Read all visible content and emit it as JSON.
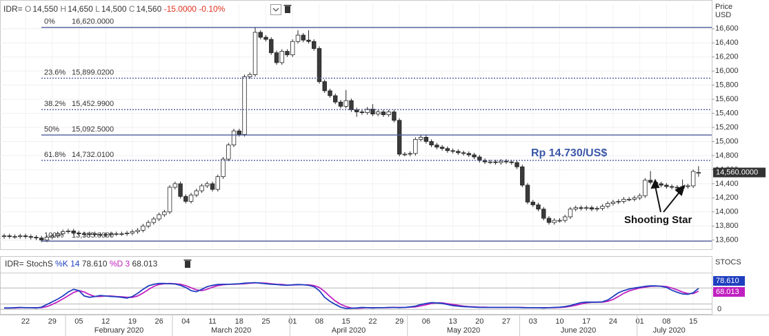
{
  "chart_data": [
    {
      "type": "candlestick",
      "header": {
        "symbol": "IDR=",
        "fields": [
          {
            "key": "O",
            "value": "14,550"
          },
          {
            "key": "H",
            "value": "14,650"
          },
          {
            "key": "L",
            "value": "14,500"
          },
          {
            "key": "C",
            "value": "14,560"
          }
        ],
        "change": "-15.0000",
        "change_pct": "-0.10%"
      },
      "y_axis_title": [
        "Price",
        "USD"
      ],
      "categories": [
        null,
        null,
        null,
        null,
        "22",
        null,
        null,
        null,
        null,
        "29",
        null,
        null,
        null,
        null,
        "05",
        null,
        null,
        null,
        null,
        "12",
        null,
        null,
        null,
        null,
        "19",
        null,
        null,
        null,
        null,
        "26",
        null,
        null,
        null,
        null,
        "04",
        null,
        null,
        null,
        null,
        "11",
        null,
        null,
        null,
        null,
        "18",
        null,
        null,
        null,
        null,
        "25",
        null,
        null,
        null,
        null,
        "01",
        null,
        null,
        null,
        null,
        "08",
        null,
        null,
        null,
        null,
        "15",
        null,
        null,
        null,
        null,
        "22",
        null,
        null,
        null,
        null,
        "29",
        null,
        null,
        null,
        null,
        "06",
        null,
        null,
        null,
        null,
        "13",
        null,
        null,
        null,
        null,
        "20",
        null,
        null,
        null,
        null,
        "27",
        null,
        null,
        null,
        null,
        "03",
        null,
        null,
        null,
        null,
        "10",
        null,
        null,
        null,
        null,
        "17",
        null,
        null,
        null,
        null,
        "24",
        null,
        null,
        null,
        null,
        "01",
        null,
        null,
        null,
        null,
        "08",
        null,
        null,
        null,
        null,
        "15",
        null
      ],
      "month_labels": [
        "February 2020",
        "March 2020",
        "April 2020",
        "May 2020",
        "June 2020",
        "July 2020"
      ],
      "open": [
        13650,
        13660,
        13650,
        13650,
        13660,
        13650,
        13640,
        13630,
        13600,
        13640,
        13660,
        13690,
        13720,
        13730,
        13700,
        13690,
        13680,
        13690,
        13680,
        13670,
        13680,
        13690,
        13690,
        13690,
        13700,
        13720,
        13740,
        13800,
        13850,
        13900,
        13960,
        14000,
        14350,
        14400,
        14220,
        14150,
        14240,
        14300,
        14370,
        14400,
        14320,
        14500,
        14750,
        14950,
        15150,
        15100,
        15920,
        15950,
        16550,
        16480,
        16450,
        16260,
        16120,
        16280,
        16230,
        16420,
        16510,
        16440,
        16420,
        16320,
        15850,
        15720,
        15650,
        15560,
        15500,
        15580,
        15450,
        15420,
        15410,
        15460,
        15390,
        15420,
        15380,
        15420,
        15300,
        14820,
        14820,
        14830,
        15030,
        15060,
        15000,
        14950,
        14920,
        14900,
        14870,
        14860,
        14840,
        14830,
        14810,
        14780,
        14730,
        14710,
        14710,
        14700,
        14720,
        14710,
        14700,
        14640,
        14380,
        14140,
        14100,
        14040,
        13910,
        13850,
        13880,
        13880,
        13930,
        14040,
        14060,
        14050,
        14060,
        14040,
        14050,
        14080,
        14120,
        14140,
        14150,
        14180,
        14180,
        14200,
        14230,
        14450,
        14420,
        14400,
        14380,
        14360,
        14350,
        14340,
        14360,
        14370,
        14550
      ],
      "high": [
        13690,
        13690,
        13680,
        13690,
        13690,
        13680,
        13670,
        13660,
        13670,
        13690,
        13720,
        13750,
        13760,
        13760,
        13730,
        13720,
        13720,
        13720,
        13710,
        13710,
        13720,
        13720,
        13720,
        13730,
        13750,
        13770,
        13830,
        13880,
        13930,
        13990,
        14030,
        14380,
        14430,
        14430,
        14250,
        14270,
        14330,
        14400,
        14430,
        14430,
        14530,
        14780,
        14980,
        15180,
        15180,
        15950,
        15980,
        16620,
        16580,
        16510,
        16480,
        16290,
        16310,
        16310,
        16450,
        16580,
        16540,
        16580,
        16450,
        16350,
        15880,
        15750,
        15680,
        15590,
        15730,
        15610,
        15480,
        15450,
        15490,
        15530,
        15450,
        15450,
        15450,
        15450,
        15330,
        14850,
        14860,
        15060,
        15090,
        15090,
        15030,
        14980,
        14950,
        14930,
        14900,
        14890,
        14870,
        14860,
        14840,
        14810,
        14760,
        14740,
        14740,
        14750,
        14750,
        14740,
        14730,
        14670,
        14410,
        14170,
        14130,
        14070,
        13940,
        13910,
        13910,
        13960,
        14070,
        14090,
        14090,
        14090,
        14090,
        14080,
        14110,
        14150,
        14170,
        14180,
        14210,
        14210,
        14230,
        14260,
        14480,
        14580,
        14450,
        14430,
        14410,
        14390,
        14380,
        14460,
        14400,
        14600,
        14650
      ],
      "low": [
        13620,
        13620,
        13620,
        13620,
        13620,
        13610,
        13600,
        13570,
        13570,
        13610,
        13630,
        13660,
        13690,
        13670,
        13660,
        13650,
        13650,
        13650,
        13640,
        13640,
        13650,
        13660,
        13660,
        13660,
        13670,
        13690,
        13710,
        13770,
        13820,
        13870,
        13930,
        13970,
        14320,
        14190,
        14120,
        14120,
        14210,
        14270,
        14340,
        14290,
        14290,
        14470,
        14720,
        14920,
        15070,
        15070,
        15890,
        15920,
        16450,
        16420,
        16230,
        16090,
        16090,
        16200,
        16200,
        16390,
        16410,
        16390,
        16290,
        15820,
        15690,
        15620,
        15530,
        15470,
        15470,
        15420,
        15350,
        15380,
        15380,
        15360,
        15360,
        15350,
        15350,
        15270,
        14790,
        14790,
        14790,
        14800,
        15000,
        14970,
        14920,
        14890,
        14870,
        14840,
        14830,
        14810,
        14800,
        14780,
        14750,
        14700,
        14680,
        14680,
        14670,
        14670,
        14680,
        14670,
        14610,
        14350,
        14110,
        14070,
        14010,
        13880,
        13820,
        13820,
        13850,
        13850,
        13900,
        14010,
        14020,
        14020,
        14010,
        14010,
        14020,
        14050,
        14090,
        14110,
        14120,
        14150,
        14150,
        14170,
        14200,
        14390,
        14370,
        14350,
        14330,
        14320,
        14310,
        14330,
        14330,
        14340,
        14500
      ],
      "close": [
        13660,
        13650,
        13650,
        13660,
        13650,
        13640,
        13630,
        13600,
        13640,
        13660,
        13690,
        13720,
        13730,
        13700,
        13690,
        13680,
        13690,
        13680,
        13670,
        13680,
        13690,
        13690,
        13690,
        13700,
        13720,
        13740,
        13800,
        13850,
        13900,
        13960,
        14000,
        14350,
        14400,
        14220,
        14150,
        14240,
        14300,
        14370,
        14400,
        14320,
        14500,
        14750,
        14950,
        15150,
        15100,
        15920,
        15950,
        16550,
        16480,
        16450,
        16260,
        16120,
        16280,
        16230,
        16420,
        16510,
        16440,
        16420,
        16320,
        15850,
        15720,
        15650,
        15560,
        15500,
        15580,
        15450,
        15420,
        15410,
        15460,
        15390,
        15420,
        15380,
        15420,
        15300,
        14820,
        14820,
        14830,
        15030,
        15060,
        15000,
        14950,
        14920,
        14900,
        14870,
        14860,
        14840,
        14830,
        14810,
        14780,
        14730,
        14710,
        14710,
        14700,
        14720,
        14710,
        14700,
        14640,
        14380,
        14140,
        14100,
        14040,
        13910,
        13850,
        13880,
        13880,
        13930,
        14040,
        14060,
        14050,
        14060,
        14040,
        14050,
        14080,
        14120,
        14140,
        14150,
        14180,
        14180,
        14200,
        14230,
        14450,
        14420,
        14400,
        14380,
        14360,
        14350,
        14340,
        14360,
        14370,
        14575,
        14560
      ],
      "up_color": "#ffffff",
      "down_color": "#3a3a3a",
      "ylim": [
        13470,
        16960
      ],
      "yticks": [
        {
          "value": 13600,
          "label": "13,600"
        },
        {
          "value": 13800,
          "label": "13,800"
        },
        {
          "value": 14000,
          "label": "14,000"
        },
        {
          "value": 14200,
          "label": "14,200"
        },
        {
          "value": 14400,
          "label": "14,400"
        },
        {
          "value": 14600,
          "label": "14,600"
        },
        {
          "value": 14800,
          "label": "14,800"
        },
        {
          "value": 15000,
          "label": "15,000"
        },
        {
          "value": 15200,
          "label": "15,200"
        },
        {
          "value": 15400,
          "label": "15,400"
        },
        {
          "value": 15600,
          "label": "15,600"
        },
        {
          "value": 15800,
          "label": "15,800"
        },
        {
          "value": 16000,
          "label": "16,000"
        },
        {
          "value": 16200,
          "label": "16,200"
        },
        {
          "value": 16400,
          "label": "16,400"
        },
        {
          "value": 16600,
          "label": "16,600"
        }
      ],
      "grid": true,
      "last_price": {
        "value": 14560,
        "label": "14,560.0000"
      },
      "fib_levels": {
        "ratios": [
          0,
          23.6,
          38.2,
          50,
          61.8,
          100
        ],
        "ratio_labels": [
          "0%",
          "23.6%",
          "38.2%",
          "50%",
          "61.8%",
          "100%"
        ],
        "prices": [
          16620,
          15899.02,
          15452.99,
          15092.5,
          14732.01,
          13585
        ],
        "price_labels": [
          "16,620.0000",
          "15,899.0200",
          "15,452.9900",
          "15,092.5000",
          "14,732.0100",
          "13,585.0000"
        ],
        "styles": [
          "solid",
          "dotted",
          "dotted",
          "solid",
          "dotted",
          "solid"
        ],
        "color": "#4a5a9a"
      },
      "annotations": {
        "rate": "Rp 14.730/US$",
        "pattern": "Shooting Star"
      }
    },
    {
      "type": "line",
      "title": "IDR= StochS",
      "axis_label": "STOCS",
      "params": [
        14,
        3
      ],
      "series": [
        {
          "name": "%K",
          "color": "#1f3fbf",
          "last_label": "78.610",
          "values": [
            5,
            5,
            6,
            7,
            6,
            6,
            5,
            8,
            18,
            28,
            38,
            50,
            65,
            75,
            70,
            50,
            45,
            48,
            52,
            50,
            48,
            47,
            45,
            42,
            48,
            60,
            75,
            88,
            94,
            97,
            97,
            96,
            95,
            90,
            82,
            70,
            66,
            75,
            85,
            90,
            93,
            94,
            94,
            95,
            96,
            98,
            99,
            100,
            98,
            96,
            94,
            93,
            91,
            90,
            92,
            93,
            92,
            90,
            85,
            70,
            45,
            30,
            18,
            8,
            3,
            4,
            5,
            7,
            6,
            5,
            6,
            6,
            7,
            7,
            6,
            7,
            9,
            12,
            18,
            22,
            25,
            24,
            22,
            18,
            14,
            12,
            10,
            9,
            8,
            7,
            7,
            7,
            7,
            7,
            7,
            7,
            7,
            6,
            6,
            6,
            6,
            5,
            6,
            7,
            8,
            10,
            14,
            20,
            25,
            27,
            27,
            27,
            28,
            35,
            48,
            62,
            70,
            76,
            80,
            83,
            86,
            88,
            88,
            86,
            82,
            72,
            64,
            58,
            56,
            62,
            78.61
          ]
        },
        {
          "name": "%D",
          "color": "#c020c0",
          "last_label": "68.013",
          "values": [
            5,
            5,
            5,
            6,
            6,
            6,
            6,
            6,
            10,
            18,
            28,
            39,
            51,
            63,
            70,
            65,
            55,
            48,
            48,
            50,
            50,
            48,
            47,
            45,
            45,
            50,
            61,
            74,
            86,
            93,
            96,
            97,
            96,
            94,
            89,
            81,
            73,
            70,
            75,
            83,
            89,
            92,
            94,
            94,
            95,
            96,
            98,
            99,
            99,
            98,
            96,
            94,
            93,
            91,
            91,
            92,
            92,
            92,
            89,
            82,
            67,
            48,
            31,
            19,
            10,
            5,
            4,
            5,
            6,
            6,
            6,
            6,
            6,
            7,
            7,
            7,
            8,
            9,
            13,
            17,
            22,
            24,
            24,
            21,
            18,
            15,
            12,
            10,
            9,
            8,
            8,
            7,
            7,
            7,
            7,
            7,
            7,
            7,
            6,
            6,
            6,
            6,
            6,
            6,
            7,
            8,
            11,
            15,
            20,
            24,
            26,
            27,
            27,
            30,
            37,
            48,
            60,
            69,
            75,
            80,
            83,
            86,
            87,
            87,
            85,
            80,
            73,
            65,
            59,
            59,
            68.013
          ]
        }
      ],
      "ylim": [
        -15,
        135
      ],
      "yticks": [
        0
      ],
      "hlines": [
        20,
        80
      ]
    }
  ]
}
